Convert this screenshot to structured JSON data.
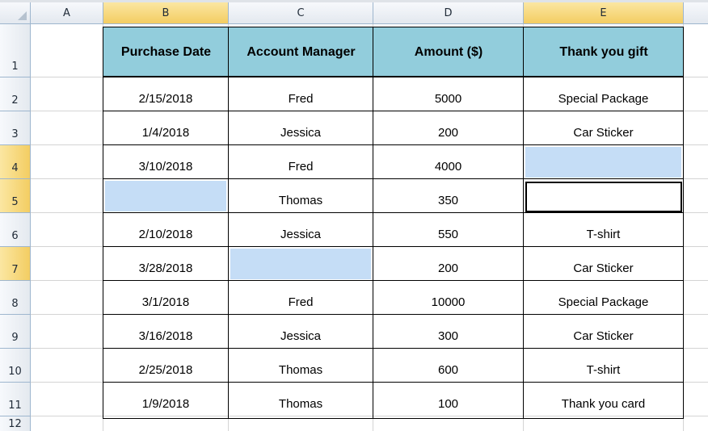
{
  "columns": [
    "A",
    "B",
    "C",
    "D",
    "E"
  ],
  "rows": [
    "1",
    "2",
    "3",
    "4",
    "5",
    "6",
    "7",
    "8",
    "9",
    "10",
    "11",
    "12"
  ],
  "headers": {
    "purchase_date": "Purchase Date",
    "account_manager": "Account Manager",
    "amount": "Amount ($)",
    "gift": "Thank you gift"
  },
  "table": [
    {
      "date": "2/15/2018",
      "manager": "Fred",
      "amount": "5000",
      "gift": "Special Package"
    },
    {
      "date": "1/4/2018",
      "manager": "Jessica",
      "amount": "200",
      "gift": "Car Sticker"
    },
    {
      "date": "3/10/2018",
      "manager": "Fred",
      "amount": "4000",
      "gift": ""
    },
    {
      "date": "",
      "manager": "Thomas",
      "amount": "350",
      "gift": ""
    },
    {
      "date": "2/10/2018",
      "manager": "Jessica",
      "amount": "550",
      "gift": "T-shirt"
    },
    {
      "date": "3/28/2018",
      "manager": "",
      "amount": "200",
      "gift": "Car Sticker"
    },
    {
      "date": "3/1/2018",
      "manager": "Fred",
      "amount": "10000",
      "gift": "Special Package"
    },
    {
      "date": "3/16/2018",
      "manager": "Jessica",
      "amount": "300",
      "gift": "Car Sticker"
    },
    {
      "date": "2/25/2018",
      "manager": "Thomas",
      "amount": "600",
      "gift": "T-shirt"
    },
    {
      "date": "1/9/2018",
      "manager": "Thomas",
      "amount": "100",
      "gift": "Thank you card"
    }
  ],
  "colors": {
    "header_fill": "#92cddc",
    "highlight_fill": "#c5ddf6",
    "selected_header": "#f3cd62"
  }
}
